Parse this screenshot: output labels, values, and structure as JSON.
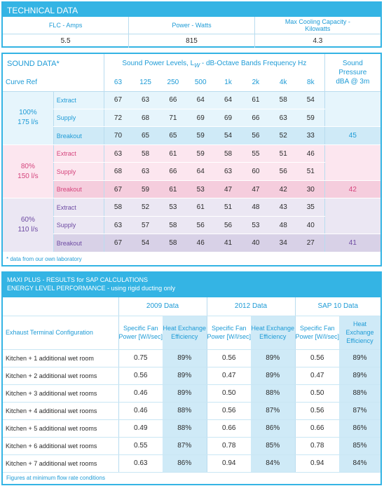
{
  "technical": {
    "title": "TECHNICAL DATA",
    "columns": [
      {
        "label": "FLC - Amps",
        "value": "5.5"
      },
      {
        "label": "Power - Watts",
        "value": "815"
      },
      {
        "label": "Max Cooling Capacity - Kilowatts",
        "value": "4.3"
      }
    ]
  },
  "sound": {
    "title": "SOUND DATA*",
    "subtitle": "Sound Power Levels, L",
    "subtitle_sub": "W",
    "subtitle_tail": " - dB-Octave Bands Frequency Hz",
    "pressure_label_1": "Sound",
    "pressure_label_2": "Pressure",
    "pressure_label_3": "dBA @ 3m",
    "curve_ref": "Curve Ref",
    "bands": [
      "63",
      "125",
      "250",
      "500",
      "1k",
      "2k",
      "4k",
      "8k"
    ],
    "groups": [
      {
        "pct": "100%",
        "flow": "175 l/s",
        "pressure": "45",
        "rows": [
          {
            "name": "Extract",
            "values": [
              "67",
              "63",
              "66",
              "64",
              "64",
              "61",
              "58",
              "54"
            ]
          },
          {
            "name": "Supply",
            "values": [
              "72",
              "68",
              "71",
              "69",
              "69",
              "66",
              "63",
              "59"
            ]
          },
          {
            "name": "Breakout",
            "values": [
              "70",
              "65",
              "65",
              "59",
              "54",
              "56",
              "52",
              "33"
            ]
          }
        ]
      },
      {
        "pct": "80%",
        "flow": "150 l/s",
        "pressure": "42",
        "rows": [
          {
            "name": "Extract",
            "values": [
              "63",
              "58",
              "61",
              "59",
              "58",
              "55",
              "51",
              "46"
            ]
          },
          {
            "name": "Supply",
            "values": [
              "68",
              "63",
              "66",
              "64",
              "63",
              "60",
              "56",
              "51"
            ]
          },
          {
            "name": "Breakout",
            "values": [
              "67",
              "59",
              "61",
              "53",
              "47",
              "47",
              "42",
              "30"
            ]
          }
        ]
      },
      {
        "pct": "60%",
        "flow": "110 l/s",
        "pressure": "41",
        "rows": [
          {
            "name": "Extract",
            "values": [
              "58",
              "52",
              "53",
              "61",
              "51",
              "48",
              "43",
              "35"
            ]
          },
          {
            "name": "Supply",
            "values": [
              "63",
              "57",
              "58",
              "56",
              "56",
              "53",
              "48",
              "40"
            ]
          },
          {
            "name": "Breakout",
            "values": [
              "67",
              "54",
              "58",
              "46",
              "41",
              "40",
              "34",
              "27"
            ]
          }
        ]
      }
    ],
    "footnote": "* data from our own laboratory"
  },
  "maxi": {
    "title_1": "MAXI PLUS - RESULTS for SAP CALCULATIONS",
    "title_2": "ENERGY LEVEL PERFORMANCE - using rigid ducting only",
    "config_label": "Exhaust Terminal Configuration",
    "periods": [
      "2009 Data",
      "2012 Data",
      "SAP 10 Data"
    ],
    "col_sfp": "Specific Fan Power [W/l/sec]",
    "col_hee": "Heat Exchange Efficiency",
    "rows": [
      {
        "name": "Kitchen + 1 additional wet room",
        "v": [
          "0.75",
          "89%",
          "0.56",
          "89%",
          "0.56",
          "89%"
        ]
      },
      {
        "name": "Kitchen + 2 additional wet rooms",
        "v": [
          "0.56",
          "89%",
          "0.47",
          "89%",
          "0.47",
          "89%"
        ]
      },
      {
        "name": "Kitchen + 3 additional wet rooms",
        "v": [
          "0.46",
          "89%",
          "0.50",
          "88%",
          "0.50",
          "88%"
        ]
      },
      {
        "name": "Kitchen + 4 additional wet rooms",
        "v": [
          "0.46",
          "88%",
          "0.56",
          "87%",
          "0.56",
          "87%"
        ]
      },
      {
        "name": "Kitchen + 5 additional wet rooms",
        "v": [
          "0.49",
          "88%",
          "0.66",
          "86%",
          "0.66",
          "86%"
        ]
      },
      {
        "name": "Kitchen + 6 additional wet rooms",
        "v": [
          "0.55",
          "87%",
          "0.78",
          "85%",
          "0.78",
          "85%"
        ]
      },
      {
        "name": "Kitchen + 7 additional wet rooms",
        "v": [
          "0.63",
          "86%",
          "0.94",
          "84%",
          "0.94",
          "84%"
        ]
      }
    ],
    "footnote": "Figures at minimum flow rate conditions"
  }
}
